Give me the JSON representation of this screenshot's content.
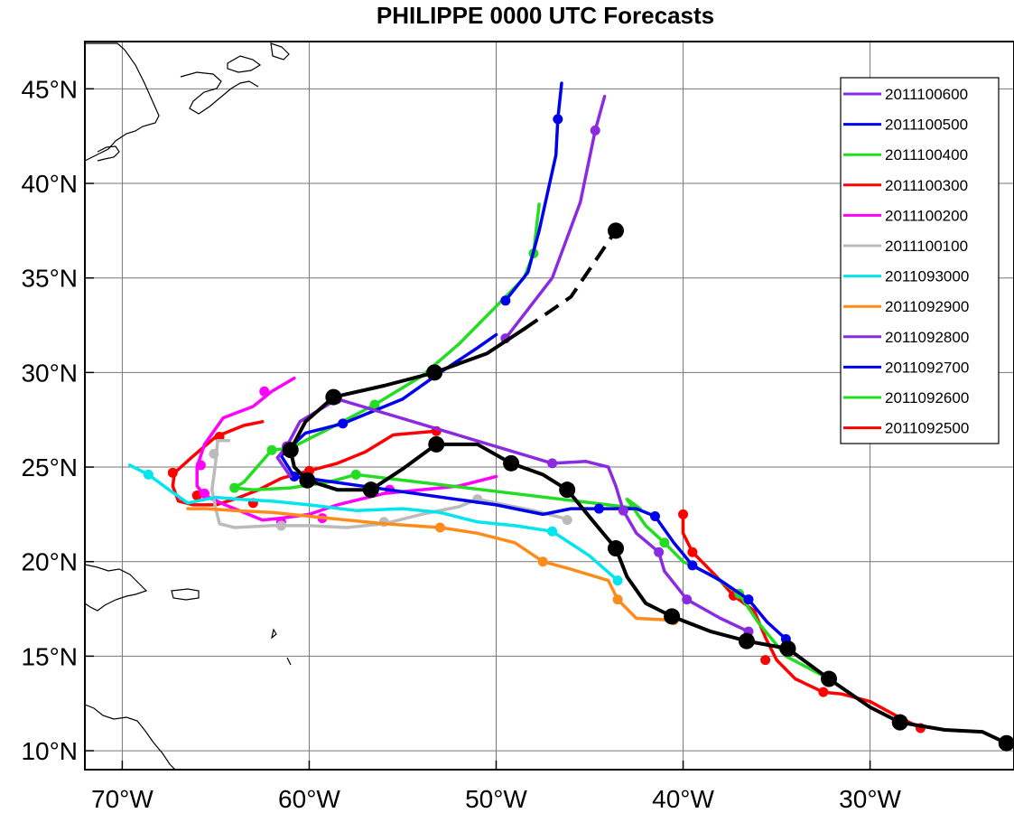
{
  "title": "PHILIPPE 0000 UTC Forecasts",
  "chart_data": {
    "type": "map-track",
    "xlim": [
      -72,
      -22.3
    ],
    "ylim": [
      9,
      47.5
    ],
    "x_ticks": [
      {
        "value": -70,
        "label": "70°W"
      },
      {
        "value": -60,
        "label": "60°W"
      },
      {
        "value": -50,
        "label": "50°W"
      },
      {
        "value": -40,
        "label": "40°W"
      },
      {
        "value": -30,
        "label": "30°W"
      }
    ],
    "y_ticks": [
      {
        "value": 10,
        "label": "10°N"
      },
      {
        "value": 15,
        "label": "15°N"
      },
      {
        "value": 20,
        "label": "20°N"
      },
      {
        "value": 25,
        "label": "25°N"
      },
      {
        "value": 30,
        "label": "30°N"
      },
      {
        "value": 35,
        "label": "35°N"
      },
      {
        "value": 40,
        "label": "40°N"
      },
      {
        "value": 45,
        "label": "45°N"
      }
    ],
    "grid": true,
    "legend_position": "top-right",
    "observed_track": {
      "color": "#000000",
      "points": [
        [
          -22.7,
          10.4
        ],
        [
          -24,
          11
        ],
        [
          -26,
          11.1
        ],
        [
          -28.4,
          11.5
        ],
        [
          -30,
          12.3
        ],
        [
          -32.2,
          13.8
        ],
        [
          -34.4,
          15.4
        ],
        [
          -36.6,
          15.8
        ],
        [
          -38.5,
          16.3
        ],
        [
          -40.6,
          17.1
        ],
        [
          -42,
          17.8
        ],
        [
          -43,
          19.2
        ],
        [
          -43.6,
          20.7
        ],
        [
          -44.7,
          22
        ],
        [
          -46.2,
          23.8
        ],
        [
          -47.5,
          24.6
        ],
        [
          -49.2,
          25.2
        ],
        [
          -51,
          26.2
        ],
        [
          -53.2,
          26.2
        ],
        [
          -55,
          24.9
        ],
        [
          -56.7,
          23.8
        ],
        [
          -58.5,
          23.8
        ],
        [
          -60.1,
          24.3
        ],
        [
          -60.8,
          25
        ],
        [
          -61,
          25.9
        ],
        [
          -60.2,
          27.4
        ],
        [
          -58.7,
          28.7
        ],
        [
          -56,
          29.3
        ],
        [
          -53.3,
          30
        ],
        [
          -50.5,
          31
        ],
        [
          -48.5,
          32.3
        ]
      ],
      "markers": [
        [
          -22.7,
          10.4
        ],
        [
          -28.4,
          11.5
        ],
        [
          -32.2,
          13.8
        ],
        [
          -34.4,
          15.4
        ],
        [
          -36.6,
          15.8
        ],
        [
          -40.6,
          17.1
        ],
        [
          -43.6,
          20.7
        ],
        [
          -46.2,
          23.8
        ],
        [
          -49.2,
          25.2
        ],
        [
          -53.2,
          26.2
        ],
        [
          -56.7,
          23.8
        ],
        [
          -60.1,
          24.3
        ],
        [
          -61,
          25.9
        ],
        [
          -58.7,
          28.7
        ],
        [
          -53.3,
          30
        ]
      ],
      "dashed_extension": [
        [
          -48.5,
          32.3
        ],
        [
          -46,
          34
        ],
        [
          -43.6,
          37.5
        ]
      ],
      "end_marker": [
        -43.6,
        37.5
      ]
    },
    "series": [
      {
        "name": "2011100600",
        "color": "#8a2be2",
        "points": [
          [
            -49.5,
            31.8
          ],
          [
            -47,
            35
          ],
          [
            -45.5,
            39
          ],
          [
            -44.7,
            42.8
          ],
          [
            -44.2,
            44.6
          ]
        ],
        "markers": [
          [
            -49.5,
            31.8
          ],
          [
            -44.7,
            42.8
          ]
        ]
      },
      {
        "name": "2011100500",
        "color": "#0000ee",
        "points": [
          [
            -49.5,
            33.8
          ],
          [
            -48.3,
            35.3
          ],
          [
            -47.7,
            37.5
          ],
          [
            -46.8,
            41.5
          ],
          [
            -46.7,
            43.4
          ],
          [
            -46.5,
            45.3
          ]
        ],
        "markers": [
          [
            -49.5,
            33.8
          ],
          [
            -46.7,
            43.4
          ]
        ]
      },
      {
        "name": "2011100400",
        "color": "#22dd22",
        "points": [
          [
            -48.5,
            35
          ],
          [
            -48,
            36.3
          ],
          [
            -47.7,
            38.9
          ]
        ],
        "markers": [
          [
            -48,
            36.3
          ]
        ]
      },
      {
        "name": "2011100300",
        "color": "#ff0000",
        "points": [],
        "markers": []
      },
      {
        "name": "2011100200",
        "color": "#ff00ff",
        "points": [],
        "markers": []
      },
      {
        "name": "2011100100",
        "color": "#bbbbbb",
        "points": [],
        "markers": []
      },
      {
        "name": "2011093000",
        "color": "#00e5ee",
        "points": [
          [
            -43.5,
            19
          ],
          [
            -45,
            20.3
          ],
          [
            -47,
            21.6
          ],
          [
            -49,
            21.9
          ],
          [
            -51,
            22.1
          ],
          [
            -53,
            22.6
          ],
          [
            -55,
            22.8
          ],
          [
            -57.5,
            22.7
          ],
          [
            -60,
            23
          ],
          [
            -62,
            23.2
          ],
          [
            -63.8,
            23.3
          ],
          [
            -65,
            23.4
          ],
          [
            -66.5,
            23.1
          ],
          [
            -67.5,
            23.8
          ],
          [
            -68.6,
            24.6
          ],
          [
            -69.6,
            25.1
          ]
        ],
        "markers": [
          [
            -43.5,
            19
          ],
          [
            -47,
            21.6
          ],
          [
            -68.6,
            24.6
          ]
        ]
      },
      {
        "name": "2011092900",
        "color": "#ff8c1a",
        "points": [
          [
            -40.5,
            16.9
          ],
          [
            -42.5,
            17
          ],
          [
            -43.5,
            18
          ],
          [
            -44,
            19
          ],
          [
            -46,
            19.6
          ],
          [
            -47.5,
            20
          ],
          [
            -49,
            21
          ],
          [
            -51,
            21.5
          ],
          [
            -53,
            21.8
          ],
          [
            -56,
            22
          ],
          [
            -59,
            22.3
          ],
          [
            -62,
            22.6
          ],
          [
            -64,
            22.7
          ],
          [
            -65.5,
            22.8
          ],
          [
            -66.5,
            22.8
          ]
        ],
        "markers": [
          [
            -40.5,
            16.9
          ],
          [
            -43.5,
            18
          ],
          [
            -47.5,
            20
          ],
          [
            -53,
            21.8
          ]
        ]
      },
      {
        "name": "2011092800",
        "color": "#8a2be2",
        "points": [
          [
            -36.5,
            16.3
          ],
          [
            -38,
            17
          ],
          [
            -39.8,
            18
          ],
          [
            -41,
            19.5
          ],
          [
            -41.3,
            20.5
          ],
          [
            -42.5,
            21.5
          ],
          [
            -43.2,
            22.7
          ],
          [
            -43.6,
            24
          ],
          [
            -44,
            25
          ],
          [
            -45.2,
            25.3
          ],
          [
            -47,
            25.2
          ],
          [
            -58.5,
            28.6
          ],
          [
            -60.5,
            27.4
          ],
          [
            -61.2,
            26.1
          ],
          [
            -61.7,
            25.5
          ],
          [
            -61,
            24.5
          ]
        ],
        "markers": [
          [
            -36.5,
            16.3
          ],
          [
            -39.8,
            18
          ],
          [
            -41.3,
            20.5
          ],
          [
            -43.2,
            22.7
          ],
          [
            -47,
            25.2
          ],
          [
            -58.5,
            28.6
          ],
          [
            -61.2,
            26.1
          ]
        ]
      },
      {
        "name": "2011092700",
        "color": "#0000ee",
        "points": [
          [
            -34.5,
            15.9
          ],
          [
            -35.5,
            16.8
          ],
          [
            -36.5,
            18
          ],
          [
            -38,
            19
          ],
          [
            -39.5,
            19.8
          ],
          [
            -40.5,
            21
          ],
          [
            -41.5,
            22.4
          ],
          [
            -42.5,
            22.8
          ],
          [
            -44.5,
            22.8
          ],
          [
            -46,
            22.8
          ],
          [
            -47.5,
            22.5
          ],
          [
            -49,
            22.8
          ],
          [
            -50,
            23
          ],
          [
            -60.8,
            24.5
          ],
          [
            -61.5,
            25.6
          ],
          [
            -60.2,
            26.8
          ],
          [
            -58.2,
            27.3
          ],
          [
            -55,
            28.6
          ],
          [
            -53,
            30
          ],
          [
            -51,
            31.3
          ],
          [
            -50,
            32
          ]
        ],
        "markers": [
          [
            -34.5,
            15.9
          ],
          [
            -36.5,
            18
          ],
          [
            -39.5,
            19.8
          ],
          [
            -41.5,
            22.4
          ],
          [
            -44.5,
            22.8
          ],
          [
            -60.8,
            24.5
          ],
          [
            -58.2,
            27.3
          ]
        ]
      },
      {
        "name": "2011092600",
        "color": "#22dd22",
        "points": [
          [
            -32.2,
            13.8
          ],
          [
            -34.5,
            15
          ],
          [
            -36,
            16.8
          ],
          [
            -37,
            18.3
          ],
          [
            -38.5,
            19.3
          ],
          [
            -40,
            20
          ],
          [
            -41,
            21
          ],
          [
            -42,
            21.9
          ],
          [
            -43,
            23.3
          ],
          [
            -42.3,
            22.8
          ],
          [
            -57.5,
            24.6
          ],
          [
            -59,
            24.2
          ],
          [
            -61,
            23.9
          ],
          [
            -63,
            23.8
          ],
          [
            -64,
            23.9
          ],
          [
            -63.5,
            24.2
          ],
          [
            -62,
            25.9
          ],
          [
            -61,
            26
          ],
          [
            -59,
            27
          ],
          [
            -56.5,
            28.3
          ],
          [
            -54,
            29.8
          ],
          [
            -52,
            31.5
          ],
          [
            -50,
            33.5
          ],
          [
            -48.5,
            35
          ]
        ],
        "markers": [
          [
            -32.2,
            13.8
          ],
          [
            -37,
            18.3
          ],
          [
            -41,
            21
          ],
          [
            -57.5,
            24.6
          ],
          [
            -64,
            23.9
          ],
          [
            -62,
            25.9
          ],
          [
            -56.5,
            28.3
          ]
        ]
      },
      {
        "name": "2011092500",
        "color": "#ff0000",
        "points": [
          [
            -27.3,
            11.2
          ],
          [
            -28.5,
            11.8
          ],
          [
            -30,
            12.6
          ],
          [
            -31.5,
            13
          ],
          [
            -32.5,
            13.1
          ],
          [
            -34,
            13.8
          ],
          [
            -35,
            14.8
          ],
          [
            -35.6,
            16
          ],
          [
            -36.2,
            17.4
          ],
          [
            -37.3,
            18.2
          ],
          [
            -38.2,
            19.2
          ],
          [
            -39.5,
            20.5
          ],
          [
            -40,
            21.5
          ],
          [
            -40,
            22.5
          ]
        ],
        "markers": [
          [
            -27.3,
            11.2
          ],
          [
            -32.5,
            13.1
          ],
          [
            -35.6,
            14.8
          ],
          [
            -37.3,
            18.2
          ],
          [
            -39.5,
            20.5
          ],
          [
            -40,
            22.5
          ]
        ]
      }
    ],
    "extra_tracks": [
      {
        "color": "#ff0000",
        "points": [
          [
            -53.2,
            26.9
          ],
          [
            -55.5,
            26.7
          ],
          [
            -57,
            25.8
          ],
          [
            -58.5,
            25.2
          ],
          [
            -60,
            24.8
          ],
          [
            -61.5,
            24.4
          ],
          [
            -62.7,
            23.8
          ],
          [
            -64,
            23.3
          ],
          [
            -65,
            23
          ],
          [
            -66.2,
            23
          ],
          [
            -67,
            23.2
          ],
          [
            -67.3,
            24
          ],
          [
            -67.2,
            24.7
          ],
          [
            -66.3,
            25.5
          ],
          [
            -65,
            26.6
          ],
          [
            -63.5,
            27.2
          ],
          [
            -62.5,
            27.4
          ]
        ],
        "markers": [
          [
            -53.2,
            26.9
          ],
          [
            -60,
            24.8
          ],
          [
            -63,
            23.1
          ],
          [
            -66,
            23.5
          ],
          [
            -67.3,
            24.7
          ],
          [
            -64.8,
            26.6
          ]
        ]
      },
      {
        "color": "#ff00ff",
        "points": [
          [
            -50,
            24.5
          ],
          [
            -52,
            24
          ],
          [
            -54,
            23.8
          ],
          [
            -56,
            23.6
          ],
          [
            -58.5,
            23
          ],
          [
            -60,
            22.5
          ],
          [
            -61.5,
            22.3
          ],
          [
            -62.5,
            22.2
          ],
          [
            -63.5,
            22.6
          ],
          [
            -64.5,
            23
          ],
          [
            -65.6,
            23.5
          ],
          [
            -66,
            24
          ],
          [
            -66,
            25
          ],
          [
            -65.6,
            26.2
          ],
          [
            -64.6,
            27.6
          ],
          [
            -63,
            28.2
          ],
          [
            -62,
            29
          ],
          [
            -60.8,
            29.7
          ]
        ],
        "markers": [
          [
            -55.7,
            23.8
          ],
          [
            -59.3,
            22.3
          ],
          [
            -61.5,
            22.1
          ],
          [
            -65.8,
            25.1
          ],
          [
            -62.4,
            29
          ],
          [
            -65.6,
            23.6
          ]
        ]
      },
      {
        "color": "#bbbbbb",
        "points": [
          [
            -46,
            22.2
          ],
          [
            -48,
            22.7
          ],
          [
            -50,
            23.1
          ],
          [
            -51,
            23.3
          ],
          [
            -52,
            22.9
          ],
          [
            -54,
            22.5
          ],
          [
            -56,
            22
          ],
          [
            -58,
            21.8
          ],
          [
            -60,
            21.9
          ],
          [
            -62,
            21.9
          ],
          [
            -64,
            21.8
          ],
          [
            -64.8,
            22
          ],
          [
            -65,
            22.8
          ],
          [
            -65.2,
            23.8
          ],
          [
            -65,
            25.3
          ],
          [
            -64.9,
            26.4
          ],
          [
            -64.3,
            26.4
          ]
        ],
        "markers": [
          [
            -46.2,
            22.2
          ],
          [
            -51,
            23.3
          ],
          [
            -56,
            22.1
          ],
          [
            -61.5,
            21.9
          ],
          [
            -65.1,
            25.7
          ]
        ]
      }
    ]
  }
}
